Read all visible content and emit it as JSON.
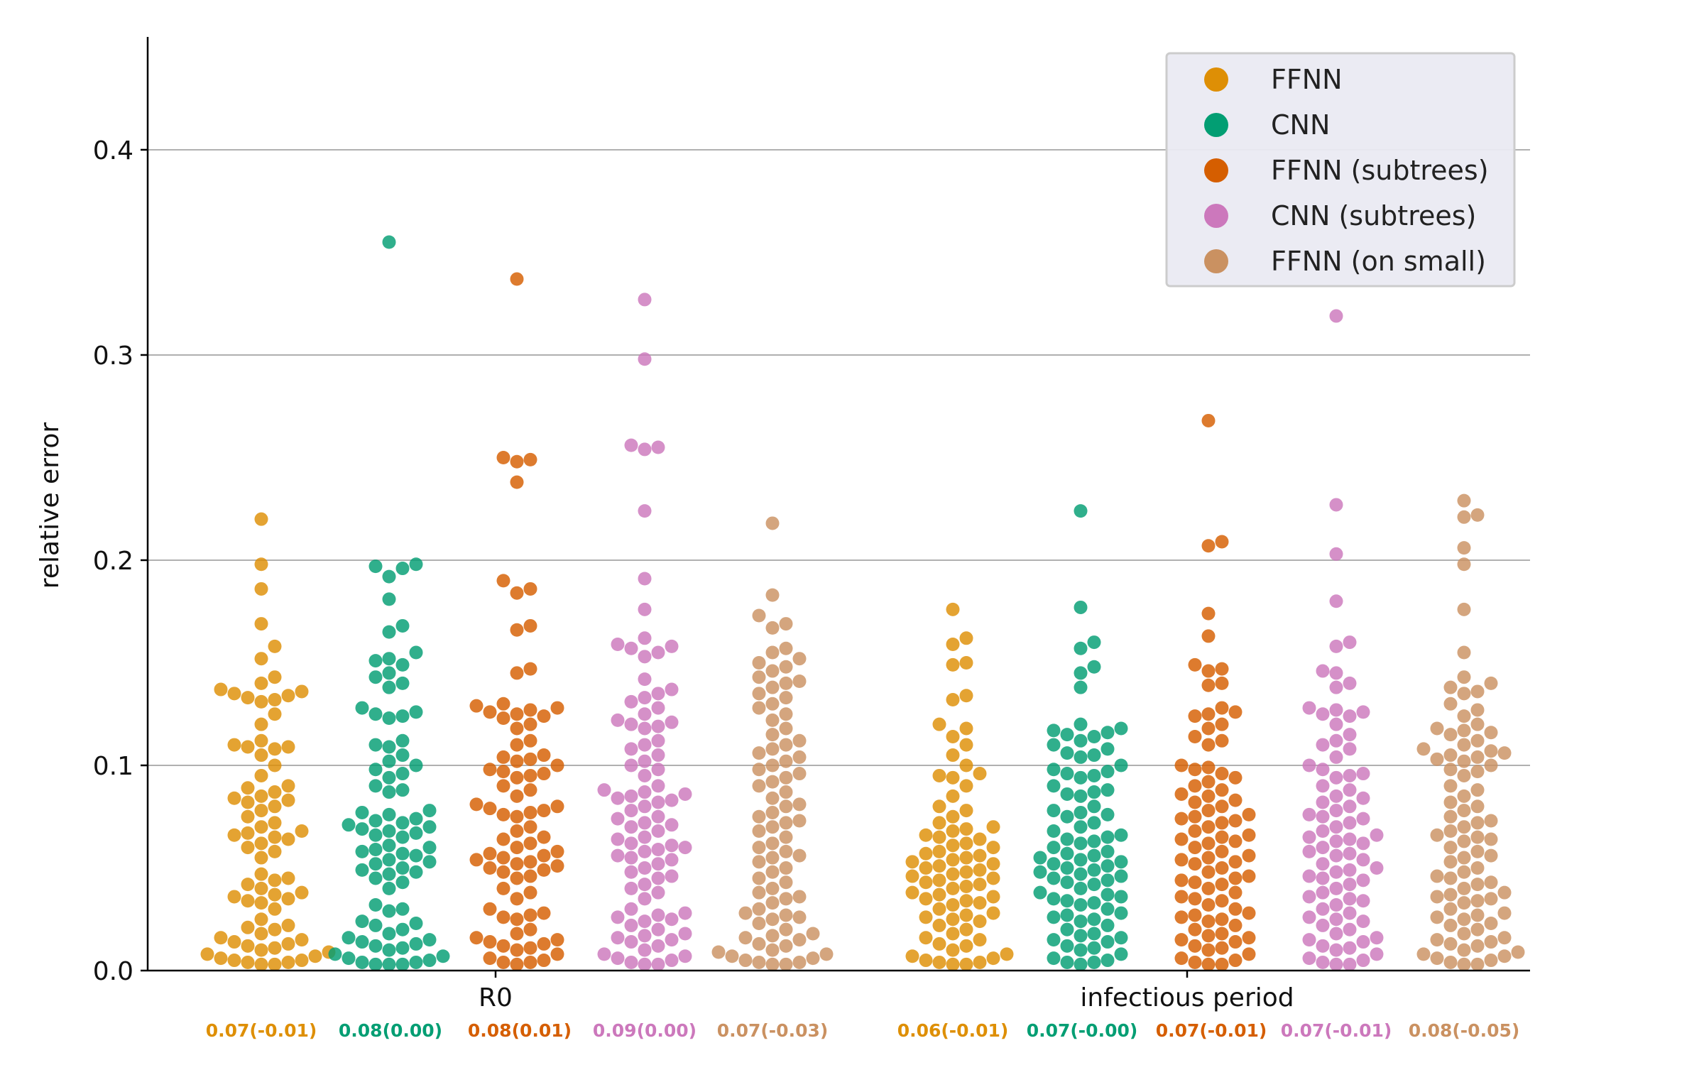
{
  "chart_data": {
    "type": "swarm",
    "title": "",
    "xlabel": "",
    "ylabel": "relative error",
    "ylim": [
      0,
      0.455
    ],
    "yticks": [
      0.0,
      0.1,
      0.2,
      0.3,
      0.4
    ],
    "ytick_labels": [
      "0.0",
      "0.1",
      "0.2",
      "0.3",
      "0.4"
    ],
    "grid": "horizontal",
    "legend_position": "top-right",
    "categories": [
      "R0",
      "infectious period"
    ],
    "series": [
      {
        "name": "FFNN",
        "color": "#de8f05",
        "summary": [
          "0.07(-0.01)",
          "0.06(-0.01)"
        ],
        "values": [
          [
            0.22,
            0.198,
            0.186,
            0.169,
            0.158,
            0.152,
            0.143,
            0.14,
            0.137,
            0.136,
            0.135,
            0.134,
            0.133,
            0.132,
            0.131,
            0.125,
            0.12,
            0.112,
            0.11,
            0.109,
            0.109,
            0.108,
            0.105,
            0.1,
            0.095,
            0.09,
            0.089,
            0.087,
            0.085,
            0.084,
            0.083,
            0.082,
            0.08,
            0.078,
            0.075,
            0.072,
            0.07,
            0.068,
            0.067,
            0.066,
            0.065,
            0.064,
            0.062,
            0.06,
            0.058,
            0.055,
            0.047,
            0.045,
            0.044,
            0.042,
            0.04,
            0.038,
            0.037,
            0.036,
            0.035,
            0.034,
            0.033,
            0.03,
            0.025,
            0.022,
            0.021,
            0.02,
            0.018,
            0.016,
            0.015,
            0.014,
            0.013,
            0.012,
            0.011,
            0.01,
            0.009,
            0.008,
            0.007,
            0.006,
            0.005,
            0.005,
            0.004,
            0.004,
            0.003,
            0.003
          ],
          [
            0.176,
            0.162,
            0.159,
            0.15,
            0.149,
            0.134,
            0.132,
            0.12,
            0.118,
            0.114,
            0.11,
            0.105,
            0.1,
            0.096,
            0.095,
            0.094,
            0.09,
            0.085,
            0.08,
            0.078,
            0.075,
            0.072,
            0.07,
            0.069,
            0.068,
            0.066,
            0.065,
            0.064,
            0.062,
            0.061,
            0.06,
            0.058,
            0.057,
            0.056,
            0.055,
            0.054,
            0.053,
            0.052,
            0.051,
            0.05,
            0.049,
            0.048,
            0.047,
            0.046,
            0.045,
            0.044,
            0.043,
            0.042,
            0.041,
            0.04,
            0.038,
            0.037,
            0.036,
            0.035,
            0.034,
            0.033,
            0.032,
            0.03,
            0.028,
            0.027,
            0.026,
            0.025,
            0.024,
            0.022,
            0.02,
            0.018,
            0.016,
            0.015,
            0.013,
            0.012,
            0.01,
            0.008,
            0.007,
            0.006,
            0.005,
            0.004,
            0.004,
            0.003,
            0.003
          ]
        ]
      },
      {
        "name": "CNN",
        "color": "#029e73",
        "summary": [
          "0.08(0.00)",
          "0.07(-0.00)"
        ],
        "values": [
          [
            0.355,
            0.198,
            0.197,
            0.196,
            0.192,
            0.181,
            0.168,
            0.165,
            0.155,
            0.152,
            0.151,
            0.149,
            0.145,
            0.143,
            0.14,
            0.138,
            0.128,
            0.126,
            0.125,
            0.124,
            0.123,
            0.112,
            0.11,
            0.109,
            0.105,
            0.102,
            0.1,
            0.098,
            0.096,
            0.094,
            0.09,
            0.088,
            0.087,
            0.078,
            0.077,
            0.076,
            0.074,
            0.073,
            0.072,
            0.071,
            0.07,
            0.069,
            0.068,
            0.067,
            0.066,
            0.065,
            0.061,
            0.06,
            0.059,
            0.058,
            0.057,
            0.056,
            0.054,
            0.053,
            0.052,
            0.05,
            0.049,
            0.048,
            0.047,
            0.045,
            0.043,
            0.04,
            0.032,
            0.03,
            0.029,
            0.024,
            0.023,
            0.022,
            0.02,
            0.018,
            0.016,
            0.015,
            0.014,
            0.013,
            0.012,
            0.011,
            0.01,
            0.008,
            0.007,
            0.006,
            0.005,
            0.004,
            0.004,
            0.003,
            0.003,
            0.003
          ],
          [
            0.224,
            0.177,
            0.16,
            0.157,
            0.148,
            0.145,
            0.138,
            0.12,
            0.118,
            0.117,
            0.116,
            0.115,
            0.114,
            0.112,
            0.11,
            0.108,
            0.106,
            0.105,
            0.104,
            0.1,
            0.098,
            0.097,
            0.096,
            0.095,
            0.094,
            0.09,
            0.088,
            0.087,
            0.086,
            0.085,
            0.08,
            0.078,
            0.077,
            0.076,
            0.075,
            0.072,
            0.07,
            0.068,
            0.066,
            0.065,
            0.064,
            0.063,
            0.062,
            0.06,
            0.058,
            0.057,
            0.056,
            0.055,
            0.054,
            0.053,
            0.052,
            0.051,
            0.05,
            0.049,
            0.048,
            0.047,
            0.046,
            0.045,
            0.044,
            0.043,
            0.042,
            0.04,
            0.038,
            0.037,
            0.036,
            0.035,
            0.034,
            0.033,
            0.032,
            0.03,
            0.028,
            0.027,
            0.026,
            0.025,
            0.024,
            0.022,
            0.02,
            0.018,
            0.017,
            0.016,
            0.015,
            0.014,
            0.012,
            0.011,
            0.01,
            0.008,
            0.006,
            0.005,
            0.004,
            0.004,
            0.003
          ]
        ]
      },
      {
        "name": "FFNN (subtrees)",
        "color": "#d55e00",
        "summary": [
          "0.08(0.01)",
          "0.07(-0.01)"
        ],
        "values": [
          [
            0.337,
            0.25,
            0.249,
            0.248,
            0.238,
            0.19,
            0.186,
            0.184,
            0.168,
            0.166,
            0.147,
            0.145,
            0.13,
            0.129,
            0.128,
            0.127,
            0.126,
            0.125,
            0.124,
            0.123,
            0.12,
            0.118,
            0.112,
            0.11,
            0.105,
            0.104,
            0.103,
            0.102,
            0.1,
            0.098,
            0.097,
            0.096,
            0.095,
            0.094,
            0.09,
            0.088,
            0.085,
            0.081,
            0.08,
            0.079,
            0.078,
            0.077,
            0.076,
            0.075,
            0.07,
            0.068,
            0.065,
            0.064,
            0.062,
            0.06,
            0.058,
            0.057,
            0.056,
            0.055,
            0.054,
            0.053,
            0.052,
            0.051,
            0.05,
            0.049,
            0.048,
            0.046,
            0.045,
            0.04,
            0.038,
            0.035,
            0.03,
            0.028,
            0.027,
            0.026,
            0.025,
            0.02,
            0.018,
            0.016,
            0.015,
            0.014,
            0.013,
            0.012,
            0.011,
            0.01,
            0.008,
            0.006,
            0.005,
            0.004,
            0.004,
            0.003
          ],
          [
            0.268,
            0.209,
            0.207,
            0.174,
            0.163,
            0.149,
            0.147,
            0.146,
            0.14,
            0.139,
            0.128,
            0.126,
            0.125,
            0.124,
            0.12,
            0.118,
            0.114,
            0.112,
            0.11,
            0.1,
            0.099,
            0.098,
            0.096,
            0.094,
            0.092,
            0.09,
            0.088,
            0.086,
            0.085,
            0.083,
            0.082,
            0.08,
            0.078,
            0.076,
            0.075,
            0.074,
            0.073,
            0.072,
            0.07,
            0.068,
            0.066,
            0.065,
            0.064,
            0.063,
            0.062,
            0.06,
            0.058,
            0.056,
            0.055,
            0.054,
            0.053,
            0.052,
            0.05,
            0.048,
            0.046,
            0.045,
            0.044,
            0.043,
            0.042,
            0.04,
            0.038,
            0.036,
            0.035,
            0.034,
            0.032,
            0.03,
            0.028,
            0.027,
            0.026,
            0.025,
            0.024,
            0.022,
            0.02,
            0.018,
            0.017,
            0.016,
            0.015,
            0.014,
            0.012,
            0.011,
            0.01,
            0.008,
            0.006,
            0.005,
            0.004,
            0.003,
            0.003
          ]
        ]
      },
      {
        "name": "CNN (subtrees)",
        "color": "#cc78bc",
        "summary": [
          "0.09(0.00)",
          "0.07(-0.01)"
        ],
        "values": [
          [
            0.327,
            0.298,
            0.256,
            0.255,
            0.254,
            0.224,
            0.191,
            0.176,
            0.162,
            0.159,
            0.158,
            0.157,
            0.155,
            0.153,
            0.142,
            0.137,
            0.135,
            0.133,
            0.131,
            0.128,
            0.125,
            0.122,
            0.121,
            0.12,
            0.119,
            0.118,
            0.112,
            0.11,
            0.108,
            0.105,
            0.102,
            0.1,
            0.098,
            0.095,
            0.09,
            0.088,
            0.087,
            0.086,
            0.085,
            0.084,
            0.083,
            0.082,
            0.08,
            0.078,
            0.075,
            0.074,
            0.072,
            0.071,
            0.07,
            0.068,
            0.065,
            0.064,
            0.062,
            0.061,
            0.06,
            0.059,
            0.058,
            0.056,
            0.055,
            0.054,
            0.052,
            0.05,
            0.048,
            0.046,
            0.045,
            0.042,
            0.04,
            0.038,
            0.035,
            0.03,
            0.028,
            0.027,
            0.026,
            0.025,
            0.024,
            0.022,
            0.02,
            0.018,
            0.017,
            0.016,
            0.015,
            0.014,
            0.012,
            0.01,
            0.008,
            0.007,
            0.006,
            0.005,
            0.004,
            0.003,
            0.003
          ],
          [
            0.319,
            0.227,
            0.203,
            0.18,
            0.16,
            0.158,
            0.146,
            0.145,
            0.14,
            0.138,
            0.128,
            0.127,
            0.126,
            0.125,
            0.124,
            0.12,
            0.115,
            0.112,
            0.11,
            0.108,
            0.104,
            0.1,
            0.098,
            0.096,
            0.095,
            0.094,
            0.09,
            0.088,
            0.085,
            0.084,
            0.082,
            0.08,
            0.078,
            0.076,
            0.075,
            0.074,
            0.072,
            0.07,
            0.068,
            0.066,
            0.065,
            0.064,
            0.063,
            0.062,
            0.06,
            0.058,
            0.057,
            0.056,
            0.054,
            0.052,
            0.05,
            0.049,
            0.048,
            0.046,
            0.045,
            0.044,
            0.042,
            0.04,
            0.038,
            0.036,
            0.035,
            0.034,
            0.032,
            0.03,
            0.028,
            0.026,
            0.025,
            0.024,
            0.022,
            0.02,
            0.018,
            0.016,
            0.015,
            0.014,
            0.012,
            0.011,
            0.01,
            0.008,
            0.006,
            0.005,
            0.004,
            0.003,
            0.003
          ]
        ]
      },
      {
        "name": "FFNN (on small)",
        "color": "#ca9161",
        "summary": [
          "0.07(-0.03)",
          "0.08(-0.05)"
        ],
        "values": [
          [
            0.218,
            0.183,
            0.173,
            0.169,
            0.167,
            0.157,
            0.155,
            0.152,
            0.15,
            0.148,
            0.146,
            0.143,
            0.141,
            0.14,
            0.138,
            0.135,
            0.133,
            0.13,
            0.128,
            0.125,
            0.122,
            0.118,
            0.115,
            0.112,
            0.11,
            0.108,
            0.106,
            0.104,
            0.102,
            0.1,
            0.098,
            0.096,
            0.094,
            0.092,
            0.09,
            0.087,
            0.084,
            0.081,
            0.08,
            0.077,
            0.075,
            0.073,
            0.072,
            0.07,
            0.068,
            0.065,
            0.062,
            0.06,
            0.058,
            0.056,
            0.055,
            0.053,
            0.05,
            0.048,
            0.045,
            0.043,
            0.04,
            0.038,
            0.036,
            0.035,
            0.033,
            0.03,
            0.028,
            0.027,
            0.026,
            0.025,
            0.023,
            0.02,
            0.018,
            0.017,
            0.016,
            0.015,
            0.013,
            0.012,
            0.01,
            0.009,
            0.008,
            0.007,
            0.006,
            0.005,
            0.004,
            0.004,
            0.003,
            0.003
          ],
          [
            0.229,
            0.222,
            0.221,
            0.206,
            0.198,
            0.176,
            0.155,
            0.143,
            0.14,
            0.138,
            0.136,
            0.135,
            0.13,
            0.127,
            0.124,
            0.12,
            0.118,
            0.117,
            0.116,
            0.115,
            0.112,
            0.11,
            0.108,
            0.107,
            0.106,
            0.105,
            0.104,
            0.103,
            0.102,
            0.1,
            0.098,
            0.097,
            0.095,
            0.09,
            0.088,
            0.085,
            0.082,
            0.08,
            0.078,
            0.075,
            0.073,
            0.072,
            0.07,
            0.068,
            0.066,
            0.065,
            0.064,
            0.063,
            0.06,
            0.058,
            0.056,
            0.055,
            0.053,
            0.05,
            0.048,
            0.046,
            0.045,
            0.043,
            0.042,
            0.04,
            0.038,
            0.037,
            0.036,
            0.035,
            0.034,
            0.033,
            0.03,
            0.028,
            0.027,
            0.026,
            0.025,
            0.023,
            0.022,
            0.02,
            0.018,
            0.016,
            0.015,
            0.014,
            0.013,
            0.012,
            0.01,
            0.009,
            0.008,
            0.007,
            0.006,
            0.005,
            0.004,
            0.003,
            0.003
          ]
        ]
      }
    ]
  }
}
